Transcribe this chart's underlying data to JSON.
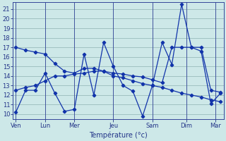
{
  "background_color": "#cde8e8",
  "grid_color": "#99bbbb",
  "line_color": "#1133aa",
  "xlabel": "Température (°c)",
  "ylim": [
    9.5,
    21.7
  ],
  "yticks": [
    10,
    11,
    12,
    13,
    14,
    15,
    16,
    17,
    18,
    19,
    20,
    21
  ],
  "xlim": [
    -0.3,
    21.3
  ],
  "day_labels": [
    "Ven",
    "Lun",
    "Mer",
    "Jeu",
    "Sam",
    "Dim",
    "Mar"
  ],
  "day_x_pos": [
    0.0,
    3.0,
    6.0,
    10.0,
    14.0,
    17.5,
    20.5
  ],
  "series_a_x": [
    0,
    1,
    2,
    3,
    4,
    5,
    6,
    7,
    8,
    9,
    10,
    11,
    12,
    13,
    14,
    15,
    16,
    17,
    18,
    19,
    20,
    21
  ],
  "series_a_y": [
    10.2,
    12.5,
    12.5,
    14.3,
    12.2,
    10.3,
    10.5,
    16.3,
    12.0,
    17.5,
    15.0,
    13.0,
    12.4,
    9.8,
    13.0,
    17.5,
    15.2,
    21.5,
    17.0,
    16.6,
    11.1,
    12.2
  ],
  "series_b_x": [
    0,
    1,
    2,
    3,
    4,
    5,
    6,
    7,
    8,
    9,
    10,
    11,
    12,
    13,
    14,
    15,
    16,
    17,
    18,
    19,
    20,
    21
  ],
  "series_b_y": [
    17.0,
    16.7,
    16.5,
    16.3,
    15.3,
    14.5,
    14.3,
    14.8,
    14.8,
    14.5,
    14.3,
    14.2,
    14.0,
    13.9,
    13.6,
    13.3,
    17.0,
    17.0,
    17.0,
    17.0,
    12.5,
    12.3
  ],
  "series_c_x": [
    0,
    1,
    2,
    3,
    4,
    5,
    6,
    7,
    8,
    9,
    10,
    11,
    12,
    13,
    14,
    15,
    16,
    17,
    18,
    19,
    20,
    21
  ],
  "series_c_y": [
    12.5,
    12.8,
    13.0,
    13.5,
    14.0,
    14.0,
    14.2,
    14.3,
    14.5,
    14.5,
    14.0,
    13.8,
    13.5,
    13.2,
    13.0,
    12.8,
    12.5,
    12.2,
    12.0,
    11.8,
    11.5,
    11.3
  ],
  "ytick_fontsize": 6,
  "xtick_fontsize": 6,
  "xlabel_fontsize": 7
}
